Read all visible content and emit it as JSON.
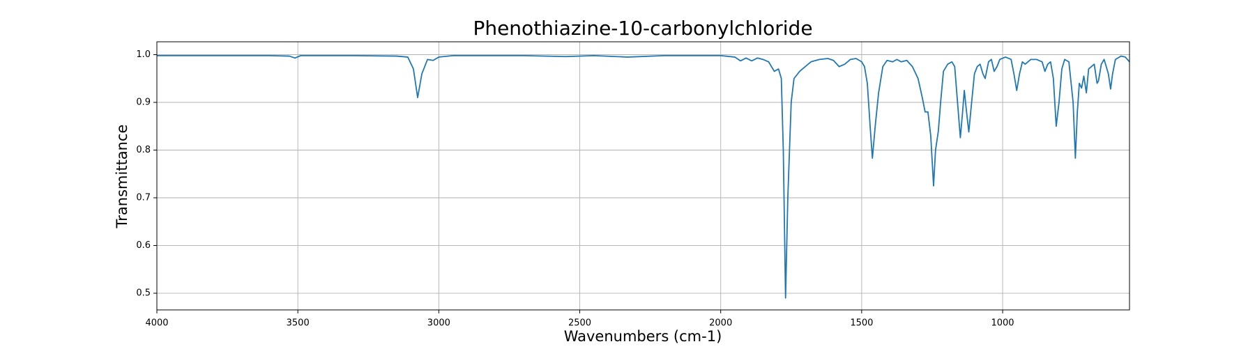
{
  "chart_data": {
    "type": "line",
    "title": "Phenothiazine-10-carbonylchloride",
    "x_label": "Wavenumbers (cm-1)",
    "y_label": "Transmittance",
    "color": "#1f77b4",
    "grid": true,
    "xlim": [
      4000,
      550
    ],
    "ylim": [
      0.465,
      1.027
    ],
    "xticks": [
      4000,
      3500,
      3000,
      2500,
      2000,
      1500,
      1000
    ],
    "yticks": [
      0.5,
      0.6,
      0.7,
      0.8,
      0.9,
      {
        "value": 1,
        "label": "1.0"
      }
    ],
    "x": [
      4000,
      3800,
      3600,
      3530,
      3510,
      3490,
      3300,
      3150,
      3110,
      3090,
      3075,
      3060,
      3040,
      3020,
      3000,
      2950,
      2700,
      2550,
      2450,
      2330,
      2200,
      2000,
      1950,
      1930,
      1910,
      1890,
      1870,
      1850,
      1830,
      1810,
      1795,
      1785,
      1778,
      1770,
      1762,
      1750,
      1740,
      1720,
      1700,
      1680,
      1650,
      1620,
      1600,
      1580,
      1560,
      1540,
      1520,
      1500,
      1490,
      1480,
      1470,
      1462,
      1452,
      1440,
      1425,
      1410,
      1390,
      1375,
      1360,
      1340,
      1320,
      1300,
      1285,
      1275,
      1265,
      1255,
      1245,
      1238,
      1228,
      1220,
      1210,
      1195,
      1180,
      1170,
      1160,
      1150,
      1142,
      1136,
      1128,
      1120,
      1110,
      1100,
      1090,
      1080,
      1070,
      1062,
      1050,
      1040,
      1030,
      1020,
      1010,
      990,
      970,
      960,
      950,
      940,
      930,
      920,
      900,
      880,
      860,
      850,
      840,
      830,
      820,
      810,
      800,
      790,
      780,
      765,
      750,
      742,
      735,
      728,
      720,
      712,
      703,
      695,
      685,
      675,
      665,
      660,
      650,
      640,
      625,
      617,
      610,
      600,
      580,
      565,
      550
    ],
    "values": [
      0.998,
      0.998,
      0.998,
      0.997,
      0.993,
      0.998,
      0.998,
      0.997,
      0.995,
      0.97,
      0.91,
      0.96,
      0.99,
      0.988,
      0.995,
      0.998,
      0.998,
      0.996,
      0.998,
      0.995,
      0.998,
      0.998,
      0.995,
      0.987,
      0.993,
      0.987,
      0.993,
      0.99,
      0.985,
      0.965,
      0.97,
      0.95,
      0.8,
      0.49,
      0.7,
      0.9,
      0.95,
      0.965,
      0.975,
      0.985,
      0.99,
      0.992,
      0.988,
      0.975,
      0.98,
      0.99,
      0.992,
      0.985,
      0.975,
      0.94,
      0.85,
      0.783,
      0.85,
      0.92,
      0.975,
      0.988,
      0.985,
      0.99,
      0.985,
      0.988,
      0.975,
      0.95,
      0.91,
      0.88,
      0.88,
      0.83,
      0.725,
      0.8,
      0.84,
      0.9,
      0.965,
      0.98,
      0.985,
      0.975,
      0.9,
      0.826,
      0.88,
      0.925,
      0.88,
      0.838,
      0.9,
      0.96,
      0.975,
      0.98,
      0.96,
      0.95,
      0.985,
      0.99,
      0.965,
      0.975,
      0.99,
      0.995,
      0.99,
      0.96,
      0.925,
      0.96,
      0.985,
      0.98,
      0.99,
      0.99,
      0.985,
      0.965,
      0.98,
      0.985,
      0.95,
      0.85,
      0.9,
      0.97,
      0.99,
      0.985,
      0.9,
      0.783,
      0.88,
      0.94,
      0.93,
      0.955,
      0.92,
      0.97,
      0.975,
      0.98,
      0.94,
      0.945,
      0.98,
      0.99,
      0.96,
      0.928,
      0.96,
      0.99,
      0.997,
      0.995,
      0.985
    ]
  }
}
